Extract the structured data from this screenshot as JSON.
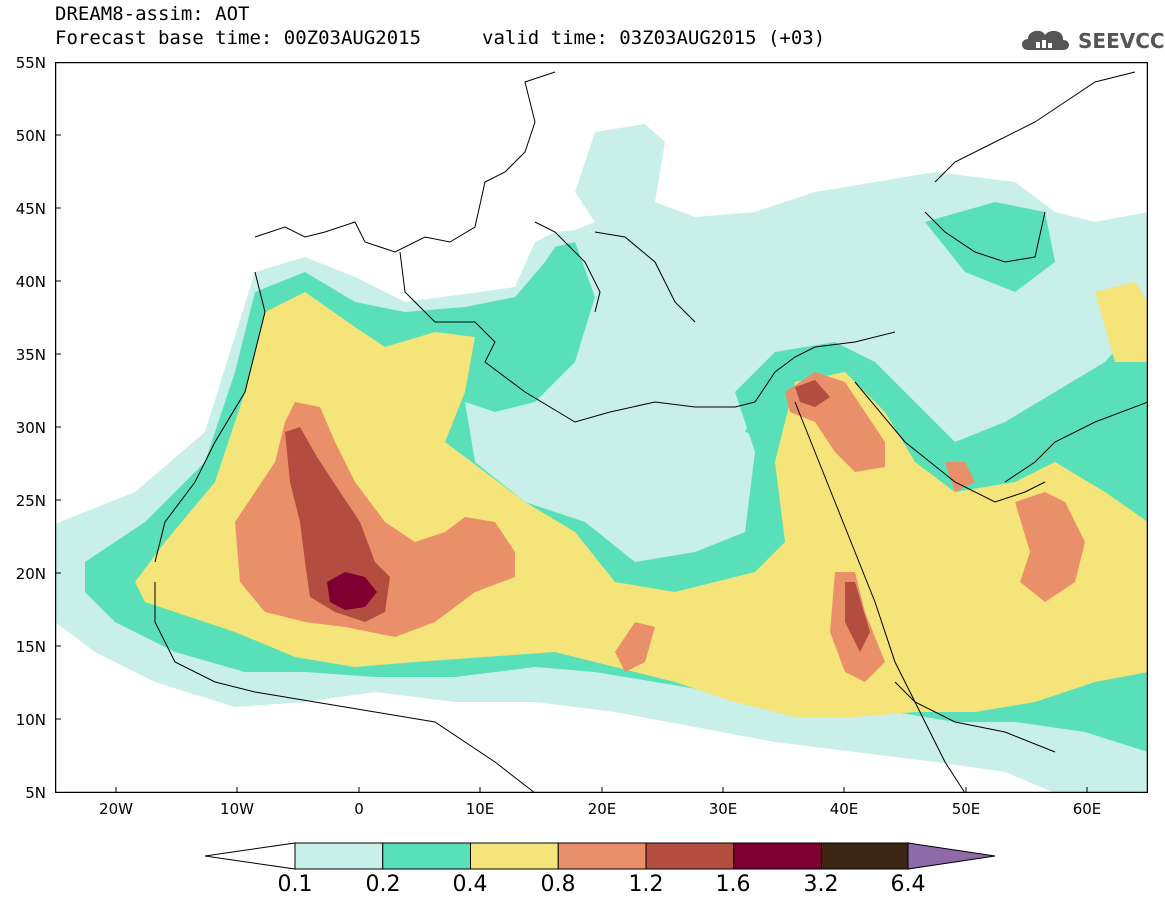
{
  "header": {
    "title": "DREAM8-assim: AOT",
    "base_time": "Forecast base time: 00Z03AUG2015",
    "valid_time": "valid time: 03Z03AUG2015 (+03)"
  },
  "logo": {
    "text": "SEEVCCC",
    "icon": "cloud-icon"
  },
  "map": {
    "lat_range": [
      5,
      55
    ],
    "lon_range": [
      -25,
      65
    ],
    "lat_labels": [
      "55N",
      "50N",
      "45N",
      "40N",
      "35N",
      "30N",
      "25N",
      "20N",
      "15N",
      "10N",
      "5N"
    ],
    "lon_labels": [
      "20W",
      "10W",
      "0",
      "10E",
      "20E",
      "30E",
      "40E",
      "50E",
      "60E"
    ]
  },
  "colorbar": {
    "labels": [
      "0.1",
      "0.2",
      "0.4",
      "0.8",
      "1.2",
      "1.6",
      "3.2",
      "6.4"
    ],
    "colors": [
      "#c8f0e8",
      "#5ae0b9",
      "#f5e479",
      "#e9906a",
      "#b24d3f",
      "#7d0031",
      "#3d2514",
      "#8f6aa8"
    ]
  }
}
